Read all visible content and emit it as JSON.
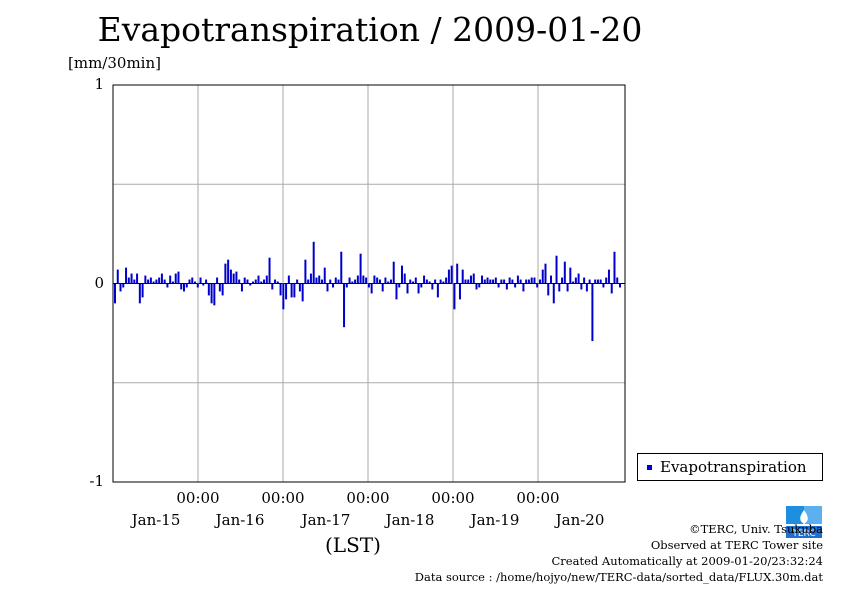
{
  "chart_data": {
    "type": "bar",
    "title": "Evapotranspiration / 2009-01-20",
    "ylabel": "[mm/30min]",
    "xlabel": "(LST)",
    "ylim": [
      -1,
      1
    ],
    "yticks": [
      "1",
      "0",
      "-1"
    ],
    "x_tick_times": [
      "00:00",
      "00:00",
      "00:00",
      "00:00",
      "00:00"
    ],
    "x_tick_dates": [
      "Jan-15",
      "Jan-16",
      "Jan-17",
      "Jan-18",
      "Jan-19",
      "Jan-20"
    ],
    "legend": {
      "label": "Evapotranspiration",
      "position": "right-bottom"
    },
    "grid": true,
    "series": [
      {
        "name": "Evapotranspiration",
        "color": "#0000cc",
        "values": [
          -0.1,
          0.07,
          -0.04,
          -0.02,
          0.08,
          0.03,
          0.05,
          0.02,
          0.05,
          -0.1,
          -0.07,
          0.04,
          0.02,
          0.03,
          0.01,
          0.02,
          0.03,
          0.05,
          0.02,
          -0.02,
          0.04,
          0.01,
          0.05,
          0.06,
          -0.03,
          -0.04,
          -0.02,
          0.02,
          0.03,
          0.01,
          -0.02,
          0.03,
          -0.01,
          0.02,
          -0.06,
          -0.1,
          -0.11,
          0.03,
          -0.04,
          -0.06,
          0.1,
          0.12,
          0.07,
          0.05,
          0.06,
          0.02,
          -0.04,
          0.03,
          0.02,
          -0.01,
          0.01,
          0.02,
          0.04,
          0.01,
          0.02,
          0.04,
          0.13,
          -0.03,
          0.02,
          0.01,
          -0.06,
          -0.13,
          -0.08,
          0.04,
          -0.07,
          -0.07,
          0.02,
          -0.04,
          -0.09,
          0.12,
          0.02,
          0.05,
          0.21,
          0.03,
          0.04,
          0.02,
          0.08,
          -0.04,
          0.02,
          -0.02,
          0.03,
          0.02,
          0.16,
          -0.22,
          -0.02,
          0.03,
          0.01,
          0.02,
          0.04,
          0.15,
          0.04,
          0.03,
          -0.02,
          -0.05,
          0.04,
          0.03,
          0.02,
          -0.04,
          0.03,
          0.01,
          0.02,
          0.11,
          -0.08,
          -0.02,
          0.09,
          0.05,
          -0.05,
          0.02,
          0.01,
          0.03,
          -0.05,
          -0.02,
          0.04,
          0.02,
          0.01,
          -0.03,
          0.02,
          -0.07,
          0.02,
          0.01,
          0.03,
          0.07,
          0.09,
          -0.13,
          0.1,
          -0.08,
          0.07,
          0.02,
          0.02,
          0.04,
          0.05,
          -0.03,
          -0.02,
          0.04,
          0.02,
          0.03,
          0.02,
          0.02,
          0.03,
          -0.02,
          0.02,
          0.02,
          -0.03,
          0.03,
          0.02,
          -0.02,
          0.04,
          0.02,
          -0.04,
          0.02,
          0.02,
          0.03,
          0.03,
          -0.02,
          0.02,
          0.07,
          0.1,
          -0.06,
          0.04,
          -0.1,
          0.14,
          -0.04,
          0.03,
          0.11,
          -0.04,
          0.08,
          0.01,
          0.03,
          0.05,
          -0.03,
          0.03,
          -0.04,
          0.02,
          -0.29,
          0.02,
          0.02,
          0.02,
          -0.02,
          0.03,
          0.07,
          -0.05,
          0.16,
          0.03,
          -0.02
        ]
      }
    ]
  },
  "legend_label": "Evapotranspiration",
  "credits": {
    "line1": "©TERC, Univ. Tsukuba",
    "line2": "Observed at TERC Tower site",
    "line3": "Created Automatically at 2009-01-20/23:32:24",
    "line4": "Data source : /home/hojyo/new/TERC-data/sorted_data/FLUX.30m.dat"
  },
  "logo_text": "TERC"
}
